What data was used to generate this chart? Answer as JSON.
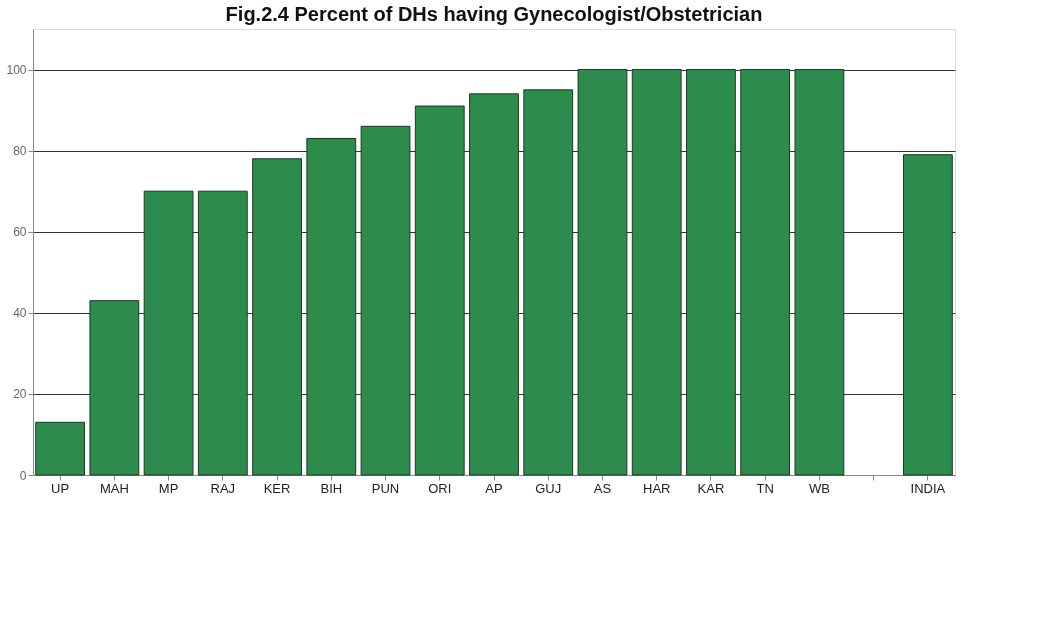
{
  "chart_data": {
    "type": "bar",
    "title": "Fig.2.4 Percent of DHs having Gynecologist/Obstetrician",
    "categories": [
      "UP",
      "MAH",
      "MP",
      "RAJ",
      "KER",
      "BIH",
      "PUN",
      "ORI",
      "AP",
      "GUJ",
      "AS",
      "HAR",
      "KAR",
      "TN",
      "WB",
      null,
      "INDIA"
    ],
    "values": [
      13,
      43,
      70,
      70,
      78,
      83,
      86,
      91,
      94,
      95,
      100,
      100,
      100,
      100,
      100,
      null,
      79
    ],
    "color": "#2e8b4e",
    "ylim": [
      0,
      110
    ],
    "yticks": [
      0,
      20,
      40,
      60,
      80,
      100
    ],
    "grid": "y"
  }
}
